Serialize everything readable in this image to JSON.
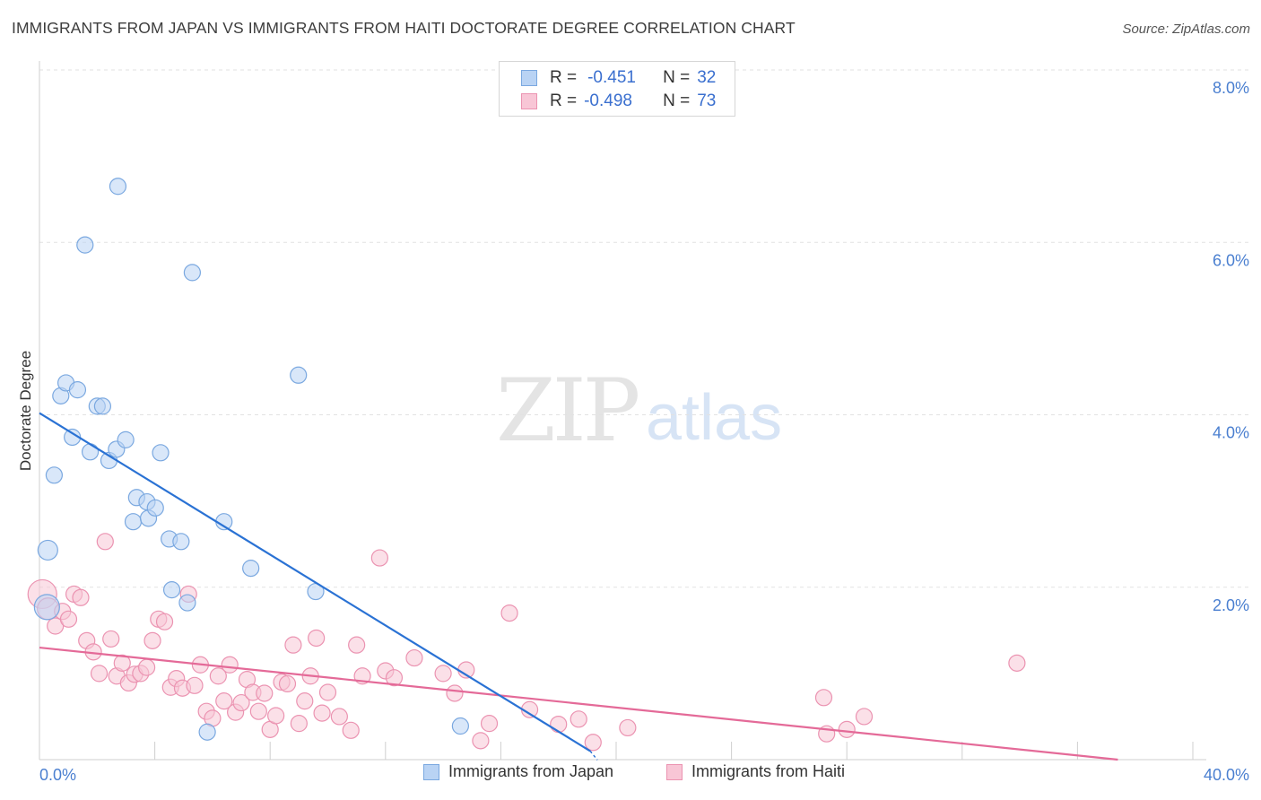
{
  "title": "IMMIGRANTS FROM JAPAN VS IMMIGRANTS FROM HAITI DOCTORATE DEGREE CORRELATION CHART",
  "source": "Source: ZipAtlas.com",
  "watermark": {
    "part1": "ZIP",
    "part2": "atlas"
  },
  "stats": {
    "japan": {
      "r_label": "R =",
      "r_value": "-0.451",
      "n_label": "N =",
      "n_value": "32"
    },
    "haiti": {
      "r_label": "R =",
      "r_value": "-0.498",
      "n_label": "N =",
      "n_value": "73"
    }
  },
  "colors": {
    "japan_fill": "#b9d3f4",
    "japan_stroke": "#7aa8e0",
    "japan_line": "#2a72d4",
    "haiti_fill": "#f8c6d6",
    "haiti_stroke": "#eb93b1",
    "haiti_line": "#e46a98",
    "tick_label": "#4a7fd0",
    "grid": "#e2e2e2"
  },
  "chart_data": {
    "type": "scatter",
    "title": "IMMIGRANTS FROM JAPAN VS IMMIGRANTS FROM HAITI DOCTORATE DEGREE CORRELATION CHART",
    "xlabel": "",
    "ylabel": "Doctorate Degree",
    "xlim": [
      0,
      40
    ],
    "ylim": [
      0,
      8.0
    ],
    "x_tick_labels": [
      "0.0%",
      "40.0%"
    ],
    "y_ticks": [
      {
        "value": 2.0,
        "label": "2.0%"
      },
      {
        "value": 4.0,
        "label": "4.0%"
      },
      {
        "value": 6.0,
        "label": "6.0%"
      },
      {
        "value": 8.0,
        "label": "8.0%"
      }
    ],
    "legend": [
      "Immigrants from Japan",
      "Immigrants from Haiti"
    ],
    "series": [
      {
        "name": "Immigrants from Japan",
        "trend": {
          "x0": 0.0,
          "y0": 4.02,
          "x1": 19.1,
          "y1": 0.1
        },
        "points": [
          [
            0.26,
            1.77,
            14
          ],
          [
            0.29,
            2.43,
            11
          ],
          [
            0.51,
            3.3,
            9
          ],
          [
            0.74,
            4.22,
            9
          ],
          [
            0.92,
            4.37,
            9
          ],
          [
            1.14,
            3.74,
            9
          ],
          [
            1.32,
            4.29,
            9
          ],
          [
            1.58,
            5.97,
            9
          ],
          [
            1.76,
            3.57,
            9
          ],
          [
            2.0,
            4.1,
            9
          ],
          [
            2.19,
            4.1,
            9
          ],
          [
            2.41,
            3.47,
            9
          ],
          [
            2.67,
            3.6,
            9
          ],
          [
            2.72,
            6.65,
            9
          ],
          [
            2.99,
            3.71,
            9
          ],
          [
            3.25,
            2.76,
            9
          ],
          [
            3.37,
            3.04,
            9
          ],
          [
            3.73,
            2.99,
            9
          ],
          [
            3.78,
            2.8,
            9
          ],
          [
            4.02,
            2.92,
            9
          ],
          [
            4.2,
            3.56,
            9
          ],
          [
            4.5,
            2.56,
            9
          ],
          [
            4.59,
            1.97,
            9
          ],
          [
            4.91,
            2.53,
            9
          ],
          [
            5.13,
            1.82,
            9
          ],
          [
            5.3,
            5.65,
            9
          ],
          [
            5.82,
            0.32,
            9
          ],
          [
            6.4,
            2.76,
            9
          ],
          [
            7.33,
            2.22,
            9
          ],
          [
            8.98,
            4.46,
            9
          ],
          [
            9.58,
            1.95,
            9
          ],
          [
            14.6,
            0.39,
            9
          ]
        ]
      },
      {
        "name": "Immigrants from Haiti",
        "trend": {
          "x0": 0.0,
          "y0": 1.3,
          "x1": 37.4,
          "y1": 0.0
        },
        "points": [
          [
            0.1,
            1.92,
            16
          ],
          [
            0.3,
            1.75,
            12
          ],
          [
            0.55,
            1.55,
            9
          ],
          [
            0.8,
            1.72,
            9
          ],
          [
            1.01,
            1.63,
            9
          ],
          [
            1.2,
            1.92,
            9
          ],
          [
            1.43,
            1.88,
            9
          ],
          [
            1.64,
            1.38,
            9
          ],
          [
            1.87,
            1.25,
            9
          ],
          [
            2.07,
            1.0,
            9
          ],
          [
            2.28,
            2.53,
            9
          ],
          [
            2.48,
            1.4,
            9
          ],
          [
            2.68,
            0.97,
            9
          ],
          [
            2.87,
            1.12,
            9
          ],
          [
            3.09,
            0.89,
            9
          ],
          [
            3.3,
            0.99,
            9
          ],
          [
            3.51,
            1.0,
            9
          ],
          [
            3.72,
            1.07,
            9
          ],
          [
            3.92,
            1.38,
            9
          ],
          [
            4.13,
            1.63,
            9
          ],
          [
            4.34,
            1.6,
            9
          ],
          [
            4.55,
            0.84,
            9
          ],
          [
            4.75,
            0.94,
            9
          ],
          [
            4.96,
            0.83,
            9
          ],
          [
            5.17,
            1.92,
            9
          ],
          [
            5.38,
            0.86,
            9
          ],
          [
            5.58,
            1.1,
            9
          ],
          [
            5.79,
            0.56,
            9
          ],
          [
            6.0,
            0.48,
            9
          ],
          [
            6.2,
            0.97,
            9
          ],
          [
            6.4,
            0.68,
            9
          ],
          [
            6.6,
            1.1,
            9
          ],
          [
            6.8,
            0.55,
            9
          ],
          [
            7.0,
            0.66,
            9
          ],
          [
            7.2,
            0.93,
            9
          ],
          [
            7.4,
            0.78,
            9
          ],
          [
            7.6,
            0.56,
            9
          ],
          [
            7.8,
            0.77,
            9
          ],
          [
            8.0,
            0.35,
            9
          ],
          [
            8.2,
            0.51,
            9
          ],
          [
            8.4,
            0.9,
            9
          ],
          [
            8.6,
            0.88,
            9
          ],
          [
            8.8,
            1.33,
            9
          ],
          [
            9.0,
            0.42,
            9
          ],
          [
            9.2,
            0.68,
            9
          ],
          [
            9.4,
            0.97,
            9
          ],
          [
            9.6,
            1.41,
            9
          ],
          [
            9.8,
            0.54,
            9
          ],
          [
            10.0,
            0.78,
            9
          ],
          [
            10.4,
            0.5,
            9
          ],
          [
            10.8,
            0.34,
            9
          ],
          [
            11.0,
            1.33,
            9
          ],
          [
            11.2,
            0.97,
            9
          ],
          [
            11.8,
            2.34,
            9
          ],
          [
            12.0,
            1.03,
            9
          ],
          [
            12.3,
            0.95,
            9
          ],
          [
            13.0,
            1.18,
            9
          ],
          [
            14.0,
            1.0,
            9
          ],
          [
            14.4,
            0.77,
            9
          ],
          [
            14.8,
            1.04,
            9
          ],
          [
            15.3,
            0.22,
            9
          ],
          [
            15.6,
            0.42,
            9
          ],
          [
            16.3,
            1.7,
            9
          ],
          [
            17.0,
            0.58,
            9
          ],
          [
            18.0,
            0.41,
            9
          ],
          [
            18.7,
            0.47,
            9
          ],
          [
            19.2,
            0.2,
            9
          ],
          [
            20.4,
            0.37,
            9
          ],
          [
            27.2,
            0.72,
            9
          ],
          [
            27.3,
            0.3,
            9
          ],
          [
            28.0,
            0.35,
            9
          ],
          [
            28.6,
            0.5,
            9
          ],
          [
            33.9,
            1.12,
            9
          ]
        ]
      }
    ]
  }
}
